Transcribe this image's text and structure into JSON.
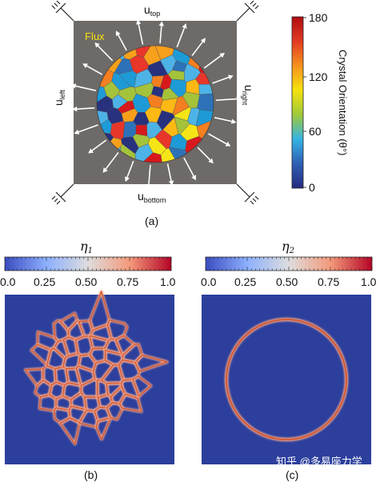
{
  "panel_a": {
    "caption": "(a)",
    "flux_label": "Flux",
    "u_top": "u",
    "u_top_sub": "top",
    "u_bottom": "u",
    "u_bottom_sub": "bottom",
    "u_left": "u",
    "u_left_sub": "left",
    "u_right": "u",
    "u_right_sub": "right",
    "colorbar": {
      "title": "Crystal Orientation (θ°)",
      "ticks": [
        "180",
        "120",
        "60",
        "0"
      ],
      "colors": [
        "#b20d12",
        "#e23a22",
        "#f7931e",
        "#f5e20e",
        "#9fc93a",
        "#35b3e4",
        "#2f5fb4",
        "#252b7f"
      ]
    },
    "grain_palette": [
      "#d7191c",
      "#f47f20",
      "#fdb913",
      "#f6e516",
      "#a5c23b",
      "#4db3e6",
      "#2d72b8",
      "#27317e",
      "#e8362a",
      "#1e9bd7",
      "#f9a01b"
    ],
    "background_color": "#6e6a67"
  },
  "panel_b": {
    "caption": "(b)",
    "title": "η",
    "title_sub": "1",
    "colorbar_ticks": [
      "0.0",
      "0.25",
      "0.50",
      "0.75",
      "1.0"
    ],
    "colormap": [
      "#3b4cc0",
      "#8db0fe",
      "#dddddd",
      "#f49a7b",
      "#b40426"
    ],
    "field_color": "#2c3f9c"
  },
  "panel_c": {
    "caption": "(c)",
    "title": "η",
    "title_sub": "2",
    "colorbar_ticks": [
      "0.0",
      "0.25",
      "0.50",
      "0.75",
      "1.0"
    ],
    "field_color": "#2c3f9c"
  },
  "watermark": "知乎 @多易座力学"
}
